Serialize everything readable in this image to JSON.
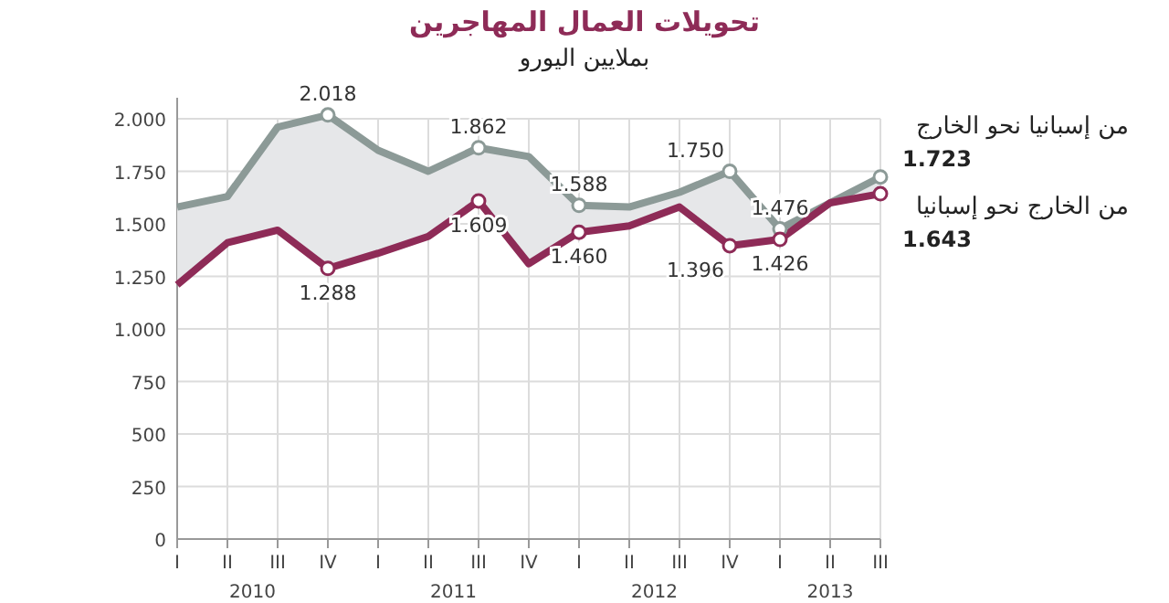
{
  "chart_data": {
    "type": "line",
    "title": "تحويلات العمال المهاجرين",
    "subtitle": "بملايين اليورو",
    "categories": [
      "I",
      "II",
      "III",
      "IV",
      "I",
      "II",
      "III",
      "IV",
      "I",
      "II",
      "III",
      "IV",
      "I",
      "II",
      "III"
    ],
    "series": [
      {
        "name": "من إسبانيا نحو الخارج",
        "color": "#8c9a97",
        "values": [
          1580,
          1630,
          1960,
          2018,
          1850,
          1750,
          1862,
          1820,
          1588,
          1580,
          1650,
          1750,
          1476,
          1600,
          1723
        ],
        "value_labels": [
          null,
          null,
          null,
          "2.018",
          null,
          null,
          "1.862",
          null,
          "1.588",
          null,
          null,
          "1.750",
          "1.476",
          null,
          "1.723"
        ],
        "lower": [
          1210,
          1410,
          1470,
          1288,
          1360,
          1440,
          1609,
          1310,
          1460,
          1490,
          1580,
          1396,
          1426,
          1600,
          1643
        ],
        "upper": [
          1580,
          1630,
          1960,
          2018,
          1850,
          1750,
          1862,
          1820,
          1588,
          1580,
          1650,
          1750,
          1476,
          1600,
          1723
        ]
      },
      {
        "name": "من الخارج نحو إسبانيا",
        "color": "#8e2b57",
        "values": [
          1210,
          1410,
          1470,
          1288,
          1360,
          1440,
          1609,
          1310,
          1460,
          1490,
          1580,
          1396,
          1426,
          1600,
          1643
        ],
        "value_labels": [
          null,
          null,
          null,
          "1.288",
          null,
          null,
          "1.609",
          null,
          "1.460",
          null,
          null,
          "1.396",
          "1.426",
          null,
          "1.643"
        ]
      }
    ],
    "ylim": [
      0,
      2100
    ],
    "yticks": [
      0,
      250,
      500,
      750,
      {
        "value": 1000,
        "label": "1.000"
      },
      {
        "value": 1250,
        "label": "1.250"
      },
      {
        "value": 1500,
        "label": "1.500"
      },
      {
        "value": 1750,
        "label": "1.750"
      },
      {
        "value": 2000,
        "label": "2.000"
      }
    ],
    "grid": true,
    "line_style": "solid",
    "annotations": [
      "2010",
      "2011",
      "2012",
      "2013"
    ]
  }
}
